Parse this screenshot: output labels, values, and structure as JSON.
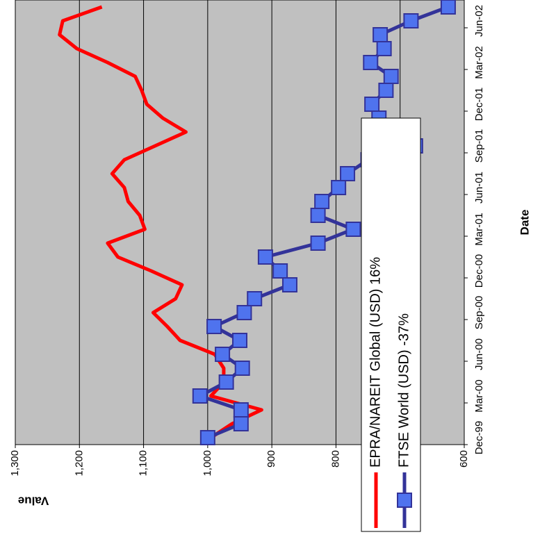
{
  "chart_data": {
    "type": "line",
    "x_label": "Date",
    "y_label": "Value",
    "categories": [
      "Dec-99",
      null,
      null,
      "Mar-00",
      null,
      null,
      "Jun-00",
      null,
      null,
      "Sep-00",
      null,
      null,
      "Dec-00",
      null,
      null,
      "Mar-01",
      null,
      null,
      "Jun-01",
      null,
      null,
      "Sep-01",
      null,
      null,
      "Dec-01",
      null,
      null,
      "Mar-02",
      null,
      null,
      "Jun-02",
      null
    ],
    "series": [
      {
        "name": "EPRA/NAREIT Global (USD) 16%",
        "color": "#ff0000",
        "marker": false,
        "values": [
          995,
          962,
          916,
          995,
          975,
          975,
          989,
          1043,
          1063,
          1085,
          1050,
          1040,
          1088,
          1140,
          1156,
          1098,
          1106,
          1124,
          1130,
          1149,
          1130,
          1082,
          1034,
          1070,
          1095,
          1103,
          1113,
          1156,
          1204,
          1231,
          1226,
          1165
        ]
      },
      {
        "name": "FTSE World (USD) -37%",
        "color": "#333399",
        "marker": true,
        "marker_color": "#4f73ee",
        "values": [
          1000,
          948,
          948,
          1012,
          971,
          946,
          977,
          950,
          990,
          943,
          927,
          872,
          887,
          910,
          828,
          773,
          828,
          822,
          796,
          782,
          750,
          676,
          717,
          733,
          744,
          722,
          714,
          746,
          725,
          731,
          683,
          625
        ]
      }
    ],
    "ylim": [
      600,
      1300
    ],
    "yticks": [
      600,
      700,
      800,
      900,
      {
        "value": 1000,
        "label": "1,000"
      },
      {
        "value": 1100,
        "label": "1,100"
      },
      {
        "value": 1200,
        "label": "1,200"
      },
      {
        "value": 1300,
        "label": "1,300"
      }
    ],
    "grid": true,
    "plot_background": "#c0c0c0",
    "rotated": true
  }
}
